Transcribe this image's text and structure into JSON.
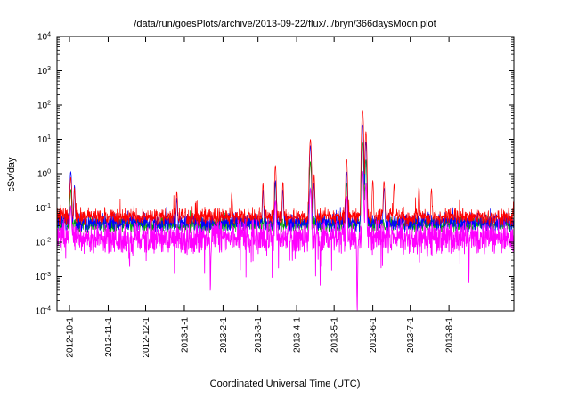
{
  "chart_data": {
    "type": "line",
    "title": "/data/run/goesPlots/archive/2013-09-22/flux/../bryn/366daysMoon.plot",
    "xlabel": "Coordinated Universal Time (UTC)",
    "ylabel": "cSv/day",
    "y_scale": "log",
    "ylim": [
      0.0001,
      10000
    ],
    "y_tick_exponents": [
      4,
      3,
      2,
      1,
      0,
      -1,
      -2,
      -3,
      -4
    ],
    "x_span_days": 366,
    "x_ticks": [
      {
        "label": "2012-10-1",
        "day": 10
      },
      {
        "label": "2012-11-1",
        "day": 41
      },
      {
        "label": "2012-12-1",
        "day": 71
      },
      {
        "label": "2013-1-1",
        "day": 102
      },
      {
        "label": "2013-2-1",
        "day": 133
      },
      {
        "label": "2013-3-1",
        "day": 161
      },
      {
        "label": "2013-4-1",
        "day": 192
      },
      {
        "label": "2013-5-1",
        "day": 222
      },
      {
        "label": "2013-6-1",
        "day": 253
      },
      {
        "label": "2013-7-1",
        "day": 283
      },
      {
        "label": "2013-8-1",
        "day": 314
      }
    ],
    "grid": false,
    "legend": false,
    "seed": 1366,
    "samples_per_day": 5,
    "series": [
      {
        "name": "green",
        "color": "#00a400",
        "base": 0.033,
        "spread": 0.28,
        "tail_up_p": 0.01,
        "tail_up_d": 0.3,
        "tail_down_p": 0,
        "tail_down_d": 0,
        "has_dips": false
      },
      {
        "name": "blue",
        "color": "#0000ff",
        "base": 0.038,
        "spread": 0.32,
        "tail_up_p": 0.012,
        "tail_up_d": 0.4,
        "tail_down_p": 0,
        "tail_down_d": 0,
        "has_dips": false
      },
      {
        "name": "red",
        "color": "#ff0000",
        "base": 0.055,
        "spread": 0.3,
        "tail_up_p": 0.025,
        "tail_up_d": 0.5,
        "tail_down_p": 0,
        "tail_down_d": 0,
        "has_dips": false
      },
      {
        "name": "magenta",
        "color": "#ff00ff",
        "base": 0.014,
        "spread": 0.55,
        "tail_up_p": 0,
        "tail_up_d": 0,
        "tail_down_p": 0.05,
        "tail_down_d": 0.8,
        "has_dips": true
      }
    ],
    "events": [
      {
        "day": 11,
        "width": 0.7,
        "peaks": {
          "blue": 1.1,
          "red": 0.7,
          "green": 0.3,
          "magenta": 0.1
        }
      },
      {
        "day": 14,
        "width": 0.5,
        "peaks": {
          "blue": 0.4,
          "red": 0.3
        }
      },
      {
        "day": 96,
        "width": 0.5,
        "peaks": {
          "red": 0.25,
          "blue": 0.15
        }
      },
      {
        "day": 140,
        "width": 0.5,
        "peaks": {
          "red": 0.22
        }
      },
      {
        "day": 165,
        "width": 0.5,
        "peaks": {
          "red": 0.45,
          "blue": 0.3
        }
      },
      {
        "day": 175,
        "width": 0.6,
        "peaks": {
          "red": 1.7,
          "blue": 0.6,
          "green": 0.5,
          "magenta": 0.15
        }
      },
      {
        "day": 181,
        "width": 0.5,
        "peaks": {
          "red": 0.5,
          "blue": 0.3
        }
      },
      {
        "day": 203,
        "width": 0.7,
        "peaks": {
          "red": 10,
          "blue": 6.5,
          "green": 2.2,
          "magenta": 0.35
        }
      },
      {
        "day": 206,
        "width": 0.5,
        "peaks": {
          "red": 0.9,
          "blue": 0.5
        }
      },
      {
        "day": 232,
        "width": 0.6,
        "peaks": {
          "red": 2.6,
          "blue": 1.1,
          "green": 0.5,
          "magenta": 0.2
        }
      },
      {
        "day": 244.8,
        "width": 0.7,
        "peaks": {
          "red": 68,
          "blue": 27,
          "green": 8,
          "magenta": 1.2
        }
      },
      {
        "day": 247.5,
        "width": 0.6,
        "peaks": {
          "red": 17,
          "blue": 8.5,
          "green": 2.5,
          "magenta": 0.5
        }
      },
      {
        "day": 253,
        "width": 0.5,
        "peaks": {
          "red": 0.6
        }
      },
      {
        "day": 262,
        "width": 0.6,
        "peaks": {
          "red": 0.55,
          "blue": 0.35
        }
      },
      {
        "day": 270,
        "width": 0.5,
        "peaks": {
          "red": 0.45
        }
      },
      {
        "day": 290,
        "width": 0.5,
        "peaks": {
          "red": 0.35
        }
      },
      {
        "day": 300,
        "width": 0.5,
        "peaks": {
          "red": 0.3
        }
      }
    ],
    "dips": [
      {
        "day": 58,
        "width": 0.3,
        "decades": 0.9
      },
      {
        "day": 123,
        "width": 0.4,
        "decades": 1.5
      },
      {
        "day": 211,
        "width": 0.4,
        "decades": 1.2
      },
      {
        "day": 240.5,
        "width": 0.5,
        "decades": 2.2
      },
      {
        "day": 244,
        "width": 0.35,
        "decades": 1.7
      },
      {
        "day": 330,
        "width": 0.3,
        "decades": 0.9
      }
    ]
  }
}
